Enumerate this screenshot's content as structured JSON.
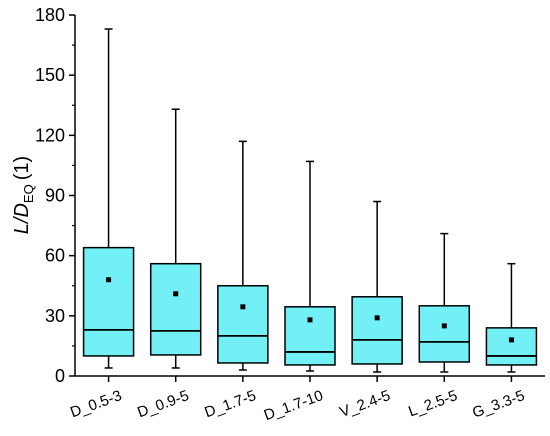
{
  "chart_data": {
    "type": "box",
    "ylabel": {
      "main": "L/D",
      "subscript": "EQ",
      "unit": "(1)"
    },
    "ylim": [
      0,
      180
    ],
    "yticks": [
      0,
      30,
      60,
      90,
      120,
      150,
      180
    ],
    "grid": false,
    "colors": {
      "box_fill": "#73f0f6",
      "stroke": "#000000"
    },
    "categories": [
      "D_0.5-3",
      "D_0.9-5",
      "D_1.7-5",
      "D_1.7-10",
      "V_2.4-5",
      "L_2.5-5",
      "G_3.3-5"
    ],
    "boxes": [
      {
        "category": "D_0.5-3",
        "whisker_low": 4,
        "q1": 10,
        "median": 23,
        "q3": 64,
        "whisker_high": 173,
        "mean": 48
      },
      {
        "category": "D_0.9-5",
        "whisker_low": 4,
        "q1": 10.5,
        "median": 22.5,
        "q3": 56,
        "whisker_high": 133,
        "mean": 41
      },
      {
        "category": "D_1.7-5",
        "whisker_low": 3,
        "q1": 6.5,
        "median": 20,
        "q3": 45,
        "whisker_high": 117,
        "mean": 34.5
      },
      {
        "category": "D_1.7-10",
        "whisker_low": 2.5,
        "q1": 5.5,
        "median": 12,
        "q3": 34.5,
        "whisker_high": 107,
        "mean": 28
      },
      {
        "category": "V_2.4-5",
        "whisker_low": 2,
        "q1": 6,
        "median": 18,
        "q3": 39.5,
        "whisker_high": 87,
        "mean": 29
      },
      {
        "category": "L_2.5-5",
        "whisker_low": 2,
        "q1": 7,
        "median": 17,
        "q3": 35,
        "whisker_high": 71,
        "mean": 25
      },
      {
        "category": "G_3.3-5",
        "whisker_low": 2,
        "q1": 5.5,
        "median": 10,
        "q3": 24,
        "whisker_high": 56,
        "mean": 18
      }
    ]
  }
}
